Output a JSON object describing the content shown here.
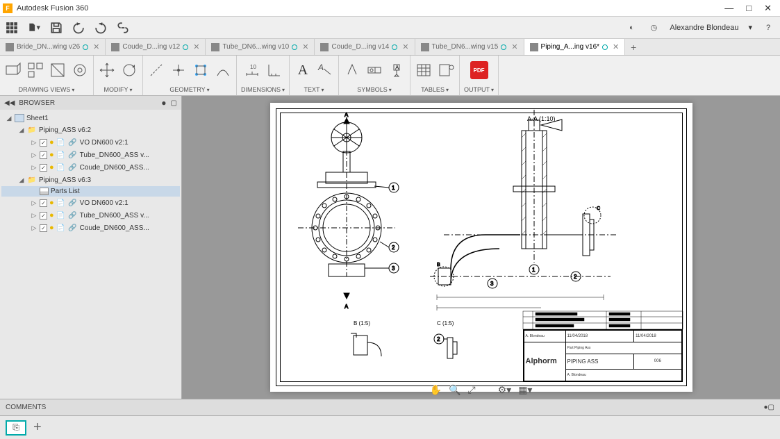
{
  "app": {
    "title": "Autodesk Fusion 360"
  },
  "user": {
    "name": "Alexandre Blondeau"
  },
  "tabs": [
    {
      "label": "Bride_DN...wing v26"
    },
    {
      "label": "Coude_D...ing v12"
    },
    {
      "label": "Tube_DN6...wing v10"
    },
    {
      "label": "Coude_D...ing v14"
    },
    {
      "label": "Tube_DN6...wing v15"
    },
    {
      "label": "Piping_A...ing v16*",
      "active": true
    }
  ],
  "ribbon": [
    {
      "label": "DRAWING VIEWS"
    },
    {
      "label": "MODIFY"
    },
    {
      "label": "GEOMETRY"
    },
    {
      "label": "DIMENSIONS"
    },
    {
      "label": "TEXT"
    },
    {
      "label": "SYMBOLS"
    },
    {
      "label": "TABLES"
    },
    {
      "label": "OUTPUT"
    }
  ],
  "browser": {
    "title": "BROWSER",
    "tree": [
      {
        "depth": 0,
        "arrow": "◢",
        "icon": "sheet",
        "label": "Sheet1"
      },
      {
        "depth": 1,
        "arrow": "◢",
        "icon": "folder",
        "label": "Piping_ASS v6:2"
      },
      {
        "depth": 2,
        "arrow": "▷",
        "icon": "comp",
        "chk": true,
        "label": "VO DN600 v2:1"
      },
      {
        "depth": 2,
        "arrow": "▷",
        "icon": "comp",
        "chk": true,
        "label": "Tube_DN600_ASS v..."
      },
      {
        "depth": 2,
        "arrow": "▷",
        "icon": "comp",
        "chk": true,
        "label": "Coude_DN600_ASS..."
      },
      {
        "depth": 1,
        "arrow": "◢",
        "icon": "folder",
        "label": "Piping_ASS v6:3"
      },
      {
        "depth": 2,
        "arrow": "",
        "icon": "parts",
        "label": "Parts List",
        "sel": true
      },
      {
        "depth": 2,
        "arrow": "▷",
        "icon": "comp",
        "chk": true,
        "label": "VO DN600 v2:1"
      },
      {
        "depth": 2,
        "arrow": "▷",
        "icon": "comp",
        "chk": true,
        "label": "Tube_DN600_ASS v..."
      },
      {
        "depth": 2,
        "arrow": "▷",
        "icon": "comp",
        "chk": true,
        "label": "Coude_DN600_ASS..."
      }
    ]
  },
  "drawing": {
    "section_label_a": "A-A (1:10)",
    "detail_b": "B (1:5)",
    "detail_c": "C (1:5)",
    "arrow_a1": "A",
    "arrow_a2": "A",
    "titleblock": {
      "logo": "Alphorm",
      "part": "Part Piping Ass",
      "title": "PIPING ASS",
      "num": "006",
      "date": "11/04/2018",
      "by": "A. Blondeau"
    }
  },
  "comments": {
    "label": "COMMENTS"
  },
  "colors": {
    "accent": "#0aa699",
    "bg": "#9a9a9a"
  }
}
